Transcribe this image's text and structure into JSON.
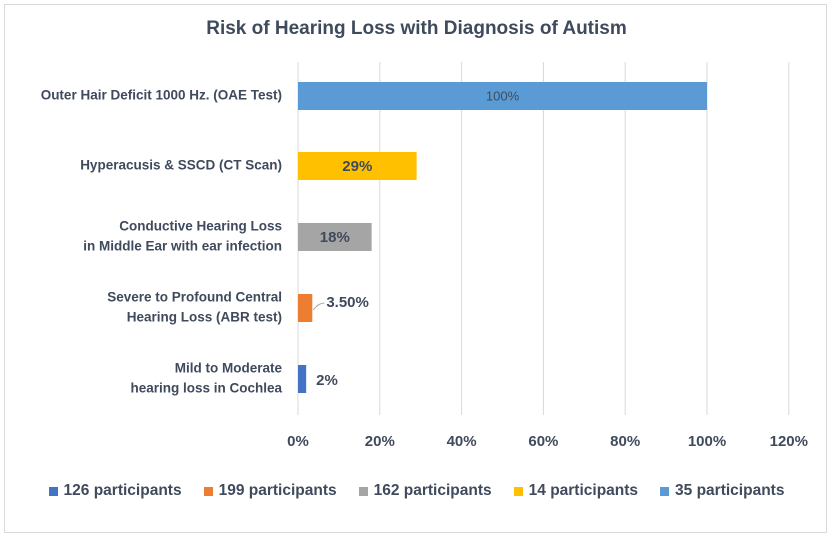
{
  "chart_data": {
    "type": "bar",
    "orientation": "horizontal",
    "title": "Risk of Hearing Loss with Diagnosis of Autism",
    "xlim": [
      0,
      120
    ],
    "x_ticks": [
      "0%",
      "20%",
      "40%",
      "60%",
      "80%",
      "100%",
      "120%"
    ],
    "grid": "vertical",
    "legend_position": "bottom",
    "categories": [
      {
        "lines": [
          "Outer Hair Deficit 1000 Hz.  (OAE Test)"
        ],
        "value": 100,
        "label": "100%",
        "color": "#5b9bd5",
        "legend": "35 participants"
      },
      {
        "lines": [
          "Hyperacusis & SSCD (CT Scan)"
        ],
        "value": 29,
        "label": "29%",
        "color": "#ffc000",
        "legend": "14 participants"
      },
      {
        "lines": [
          "Conductive Hearing Loss",
          "in Middle Ear with ear infection"
        ],
        "value": 18,
        "label": "18%",
        "color": "#a5a5a5",
        "legend": "162 participants"
      },
      {
        "lines": [
          "Severe to Profound Central",
          "Hearing Loss (ABR test)"
        ],
        "value": 3.5,
        "label": "3.50%",
        "color": "#ed7d31",
        "legend": "199 participants"
      },
      {
        "lines": [
          "Mild to Moderate",
          "hearing loss in Cochlea"
        ],
        "value": 2,
        "label": "2%",
        "color": "#4472c4",
        "legend": "126 participants"
      }
    ],
    "legend": [
      {
        "label": "126 participants",
        "color": "#4472c4"
      },
      {
        "label": "199 participants",
        "color": "#ed7d31"
      },
      {
        "label": "162 participants",
        "color": "#a5a5a5"
      },
      {
        "label": "14 participants",
        "color": "#ffc000"
      },
      {
        "label": "35 participants",
        "color": "#5b9bd5"
      }
    ]
  }
}
